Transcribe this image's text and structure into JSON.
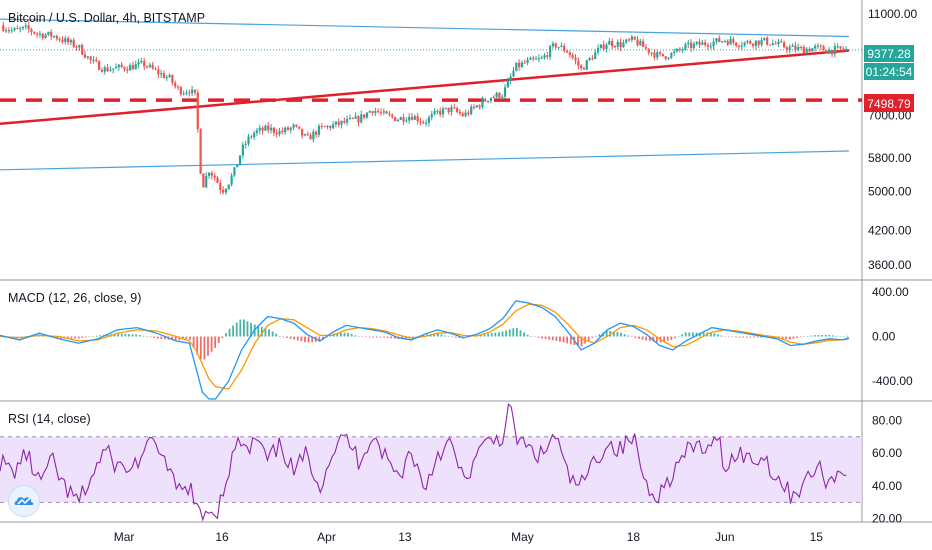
{
  "header": {
    "title": "Bitcoin / U.S. Dollar, 4h, BITSTAMP"
  },
  "colors": {
    "up": "#26a69a",
    "down": "#ef5350",
    "blue_line": "#4aa3df",
    "red_line": "#e0202a",
    "macd": "#2196f3",
    "signal": "#ff9800",
    "rsi": "#8e24aa",
    "rsi_band": "#e8d7fb",
    "price_tag": "#26a69a",
    "level_tag": "#e0202a"
  },
  "chart_data": [
    {
      "type": "candlestick",
      "title": "Bitcoin / U.S. Dollar, 4h, BITSTAMP",
      "ylim": [
        3400,
        11600
      ],
      "yscale": "log",
      "y_ticks": [
        "11000.00",
        "7000.00",
        "5800.00",
        "5000.00",
        "4200.00",
        "3600.00"
      ],
      "y_tick_values": [
        11000,
        7000,
        5800,
        5000,
        4200,
        3600
      ],
      "x_labels": [
        "Mar",
        "16",
        "Apr",
        "13",
        "May",
        "18",
        "Jun",
        "15"
      ],
      "x_label_days": [
        0,
        15,
        31,
        43,
        61,
        78,
        92,
        106
      ],
      "x_range_days": [
        -19,
        113
      ],
      "path_points": [
        [
          -19,
          10450
        ],
        [
          -17,
          10200
        ],
        [
          -15,
          10300
        ],
        [
          -13,
          10050
        ],
        [
          -11,
          10000
        ],
        [
          -9,
          9750
        ],
        [
          -7,
          9500
        ],
        [
          -5,
          8900
        ],
        [
          -3,
          8600
        ],
        [
          -1,
          8650
        ],
        [
          1,
          8700
        ],
        [
          3,
          8800
        ],
        [
          5,
          8500
        ],
        [
          7,
          8250
        ],
        [
          8,
          7900
        ],
        [
          9,
          7800
        ],
        [
          10,
          7850
        ],
        [
          11,
          7600
        ],
        [
          11.5,
          5800
        ],
        [
          12,
          5100
        ],
        [
          13,
          5500
        ],
        [
          14,
          5300
        ],
        [
          15,
          5000
        ],
        [
          16,
          5200
        ],
        [
          17,
          5500
        ],
        [
          18,
          6000
        ],
        [
          19,
          6300
        ],
        [
          20,
          6500
        ],
        [
          22,
          6600
        ],
        [
          24,
          6500
        ],
        [
          26,
          6650
        ],
        [
          28,
          6300
        ],
        [
          30,
          6600
        ],
        [
          32,
          6700
        ],
        [
          34,
          6800
        ],
        [
          36,
          6900
        ],
        [
          38,
          7200
        ],
        [
          40,
          7000
        ],
        [
          42,
          6900
        ],
        [
          44,
          7000
        ],
        [
          46,
          6800
        ],
        [
          48,
          7100
        ],
        [
          50,
          7200
        ],
        [
          52,
          7000
        ],
        [
          54,
          7300
        ],
        [
          56,
          7600
        ],
        [
          58,
          7700
        ],
        [
          60,
          8700
        ],
        [
          62,
          8900
        ],
        [
          64,
          9000
        ],
        [
          66,
          9600
        ],
        [
          68,
          9300
        ],
        [
          70,
          8600
        ],
        [
          72,
          9200
        ],
        [
          74,
          9700
        ],
        [
          76,
          9600
        ],
        [
          78,
          9800
        ],
        [
          80,
          9400
        ],
        [
          82,
          9100
        ],
        [
          84,
          9200
        ],
        [
          86,
          9500
        ],
        [
          88,
          9600
        ],
        [
          90,
          9700
        ],
        [
          92,
          9800
        ],
        [
          94,
          9650
        ],
        [
          96,
          9700
        ],
        [
          98,
          9750
        ],
        [
          100,
          9600
        ],
        [
          102,
          9450
        ],
        [
          104,
          9400
        ],
        [
          106,
          9450
        ],
        [
          108,
          9350
        ],
        [
          110,
          9400
        ],
        [
          111,
          9377
        ]
      ],
      "current_price_tag": "9377.28",
      "countdown_tag": "01:24:54",
      "level_tag": "7498.79",
      "level_value": 7498.79,
      "trend_lines": [
        {
          "points": [
            [
              -19,
              10750
            ],
            [
              111,
              9950
            ]
          ]
        },
        {
          "points": [
            [
              -19,
              6750
            ],
            [
              111,
              9350
            ]
          ]
        },
        {
          "points": [
            [
              -19,
              5500
            ],
            [
              111,
              5980
            ]
          ]
        }
      ]
    },
    {
      "type": "line",
      "title": "MACD (12, 26, close, 9)",
      "ylim": [
        -560,
        480
      ],
      "y_ticks": [
        "400.00",
        "0.00",
        "-400.00"
      ],
      "y_tick_values": [
        400,
        0,
        -400
      ],
      "x_range_days": [
        -19,
        113
      ],
      "macd_path": [
        [
          -19,
          10
        ],
        [
          -16,
          -30
        ],
        [
          -13,
          30
        ],
        [
          -10,
          -20
        ],
        [
          -7,
          -60
        ],
        [
          -4,
          -20
        ],
        [
          -1,
          60
        ],
        [
          2,
          80
        ],
        [
          5,
          30
        ],
        [
          8,
          -40
        ],
        [
          10,
          -60
        ],
        [
          11,
          -280
        ],
        [
          12,
          -500
        ],
        [
          13,
          -560
        ],
        [
          14,
          -560
        ],
        [
          16,
          -400
        ],
        [
          18,
          -120
        ],
        [
          20,
          60
        ],
        [
          22,
          180
        ],
        [
          24,
          160
        ],
        [
          26,
          120
        ],
        [
          28,
          20
        ],
        [
          30,
          -40
        ],
        [
          32,
          40
        ],
        [
          34,
          100
        ],
        [
          36,
          80
        ],
        [
          38,
          60
        ],
        [
          40,
          40
        ],
        [
          42,
          -10
        ],
        [
          44,
          -30
        ],
        [
          46,
          20
        ],
        [
          48,
          60
        ],
        [
          50,
          30
        ],
        [
          52,
          -10
        ],
        [
          54,
          20
        ],
        [
          56,
          70
        ],
        [
          58,
          160
        ],
        [
          60,
          320
        ],
        [
          62,
          300
        ],
        [
          64,
          260
        ],
        [
          66,
          180
        ],
        [
          68,
          40
        ],
        [
          70,
          -120
        ],
        [
          72,
          -60
        ],
        [
          74,
          60
        ],
        [
          76,
          120
        ],
        [
          78,
          90
        ],
        [
          80,
          20
        ],
        [
          82,
          -80
        ],
        [
          84,
          -120
        ],
        [
          86,
          -40
        ],
        [
          88,
          20
        ],
        [
          90,
          80
        ],
        [
          92,
          60
        ],
        [
          94,
          40
        ],
        [
          96,
          20
        ],
        [
          98,
          0
        ],
        [
          100,
          -20
        ],
        [
          102,
          -80
        ],
        [
          104,
          -70
        ],
        [
          106,
          -40
        ],
        [
          108,
          -20
        ],
        [
          110,
          -30
        ],
        [
          111,
          -10
        ]
      ],
      "signal_path": [
        [
          -19,
          0
        ],
        [
          -16,
          -10
        ],
        [
          -13,
          10
        ],
        [
          -10,
          0
        ],
        [
          -7,
          -40
        ],
        [
          -4,
          -30
        ],
        [
          -1,
          30
        ],
        [
          2,
          60
        ],
        [
          5,
          50
        ],
        [
          8,
          0
        ],
        [
          10,
          -40
        ],
        [
          11,
          -120
        ],
        [
          12,
          -250
        ],
        [
          13,
          -380
        ],
        [
          14,
          -450
        ],
        [
          16,
          -470
        ],
        [
          18,
          -300
        ],
        [
          20,
          -60
        ],
        [
          22,
          100
        ],
        [
          24,
          160
        ],
        [
          26,
          150
        ],
        [
          28,
          80
        ],
        [
          30,
          10
        ],
        [
          32,
          10
        ],
        [
          34,
          60
        ],
        [
          36,
          80
        ],
        [
          38,
          70
        ],
        [
          40,
          50
        ],
        [
          42,
          15
        ],
        [
          44,
          -15
        ],
        [
          46,
          0
        ],
        [
          48,
          30
        ],
        [
          50,
          35
        ],
        [
          52,
          10
        ],
        [
          54,
          5
        ],
        [
          56,
          40
        ],
        [
          58,
          110
        ],
        [
          60,
          230
        ],
        [
          62,
          290
        ],
        [
          64,
          280
        ],
        [
          66,
          220
        ],
        [
          68,
          110
        ],
        [
          70,
          -20
        ],
        [
          72,
          -60
        ],
        [
          74,
          0
        ],
        [
          76,
          80
        ],
        [
          78,
          100
        ],
        [
          80,
          60
        ],
        [
          82,
          -20
        ],
        [
          84,
          -90
        ],
        [
          86,
          -80
        ],
        [
          88,
          -20
        ],
        [
          90,
          40
        ],
        [
          92,
          60
        ],
        [
          94,
          50
        ],
        [
          96,
          30
        ],
        [
          98,
          10
        ],
        [
          100,
          -5
        ],
        [
          102,
          -50
        ],
        [
          104,
          -70
        ],
        [
          106,
          -55
        ],
        [
          108,
          -35
        ],
        [
          110,
          -30
        ],
        [
          111,
          -20
        ]
      ]
    },
    {
      "type": "line",
      "title": "RSI (14, close)",
      "ylim": [
        18,
        90
      ],
      "y_ticks": [
        "80.00",
        "60.00",
        "40.00",
        "20.00"
      ],
      "y_tick_values": [
        80,
        60,
        40,
        20
      ],
      "band": [
        30,
        70
      ],
      "x_range_days": [
        -19,
        113
      ],
      "rsi_path": [
        [
          -19,
          55
        ],
        [
          -17,
          48
        ],
        [
          -15,
          60
        ],
        [
          -13,
          42
        ],
        [
          -11,
          55
        ],
        [
          -9,
          38
        ],
        [
          -7,
          30
        ],
        [
          -5,
          45
        ],
        [
          -3,
          62
        ],
        [
          -1,
          52
        ],
        [
          1,
          50
        ],
        [
          3,
          60
        ],
        [
          5,
          68
        ],
        [
          7,
          45
        ],
        [
          9,
          35
        ],
        [
          10,
          42
        ],
        [
          11,
          25
        ],
        [
          12,
          20
        ],
        [
          13,
          28
        ],
        [
          14,
          22
        ],
        [
          15,
          35
        ],
        [
          16,
          50
        ],
        [
          17,
          62
        ],
        [
          18,
          68
        ],
        [
          19,
          58
        ],
        [
          20,
          70
        ],
        [
          22,
          55
        ],
        [
          24,
          65
        ],
        [
          26,
          48
        ],
        [
          28,
          60
        ],
        [
          30,
          40
        ],
        [
          32,
          62
        ],
        [
          34,
          70
        ],
        [
          36,
          55
        ],
        [
          38,
          72
        ],
        [
          40,
          58
        ],
        [
          42,
          45
        ],
        [
          44,
          62
        ],
        [
          46,
          38
        ],
        [
          48,
          60
        ],
        [
          50,
          66
        ],
        [
          52,
          42
        ],
        [
          54,
          58
        ],
        [
          56,
          68
        ],
        [
          58,
          70
        ],
        [
          59,
          88
        ],
        [
          60,
          70
        ],
        [
          62,
          62
        ],
        [
          64,
          58
        ],
        [
          66,
          72
        ],
        [
          68,
          45
        ],
        [
          70,
          40
        ],
        [
          72,
          55
        ],
        [
          74,
          66
        ],
        [
          76,
          62
        ],
        [
          78,
          70
        ],
        [
          80,
          40
        ],
        [
          82,
          35
        ],
        [
          84,
          48
        ],
        [
          86,
          60
        ],
        [
          88,
          65
        ],
        [
          90,
          60
        ],
        [
          91,
          73
        ],
        [
          92,
          50
        ],
        [
          94,
          62
        ],
        [
          96,
          55
        ],
        [
          98,
          58
        ],
        [
          100,
          45
        ],
        [
          102,
          35
        ],
        [
          104,
          40
        ],
        [
          106,
          52
        ],
        [
          108,
          42
        ],
        [
          110,
          50
        ],
        [
          111,
          52
        ]
      ]
    }
  ]
}
